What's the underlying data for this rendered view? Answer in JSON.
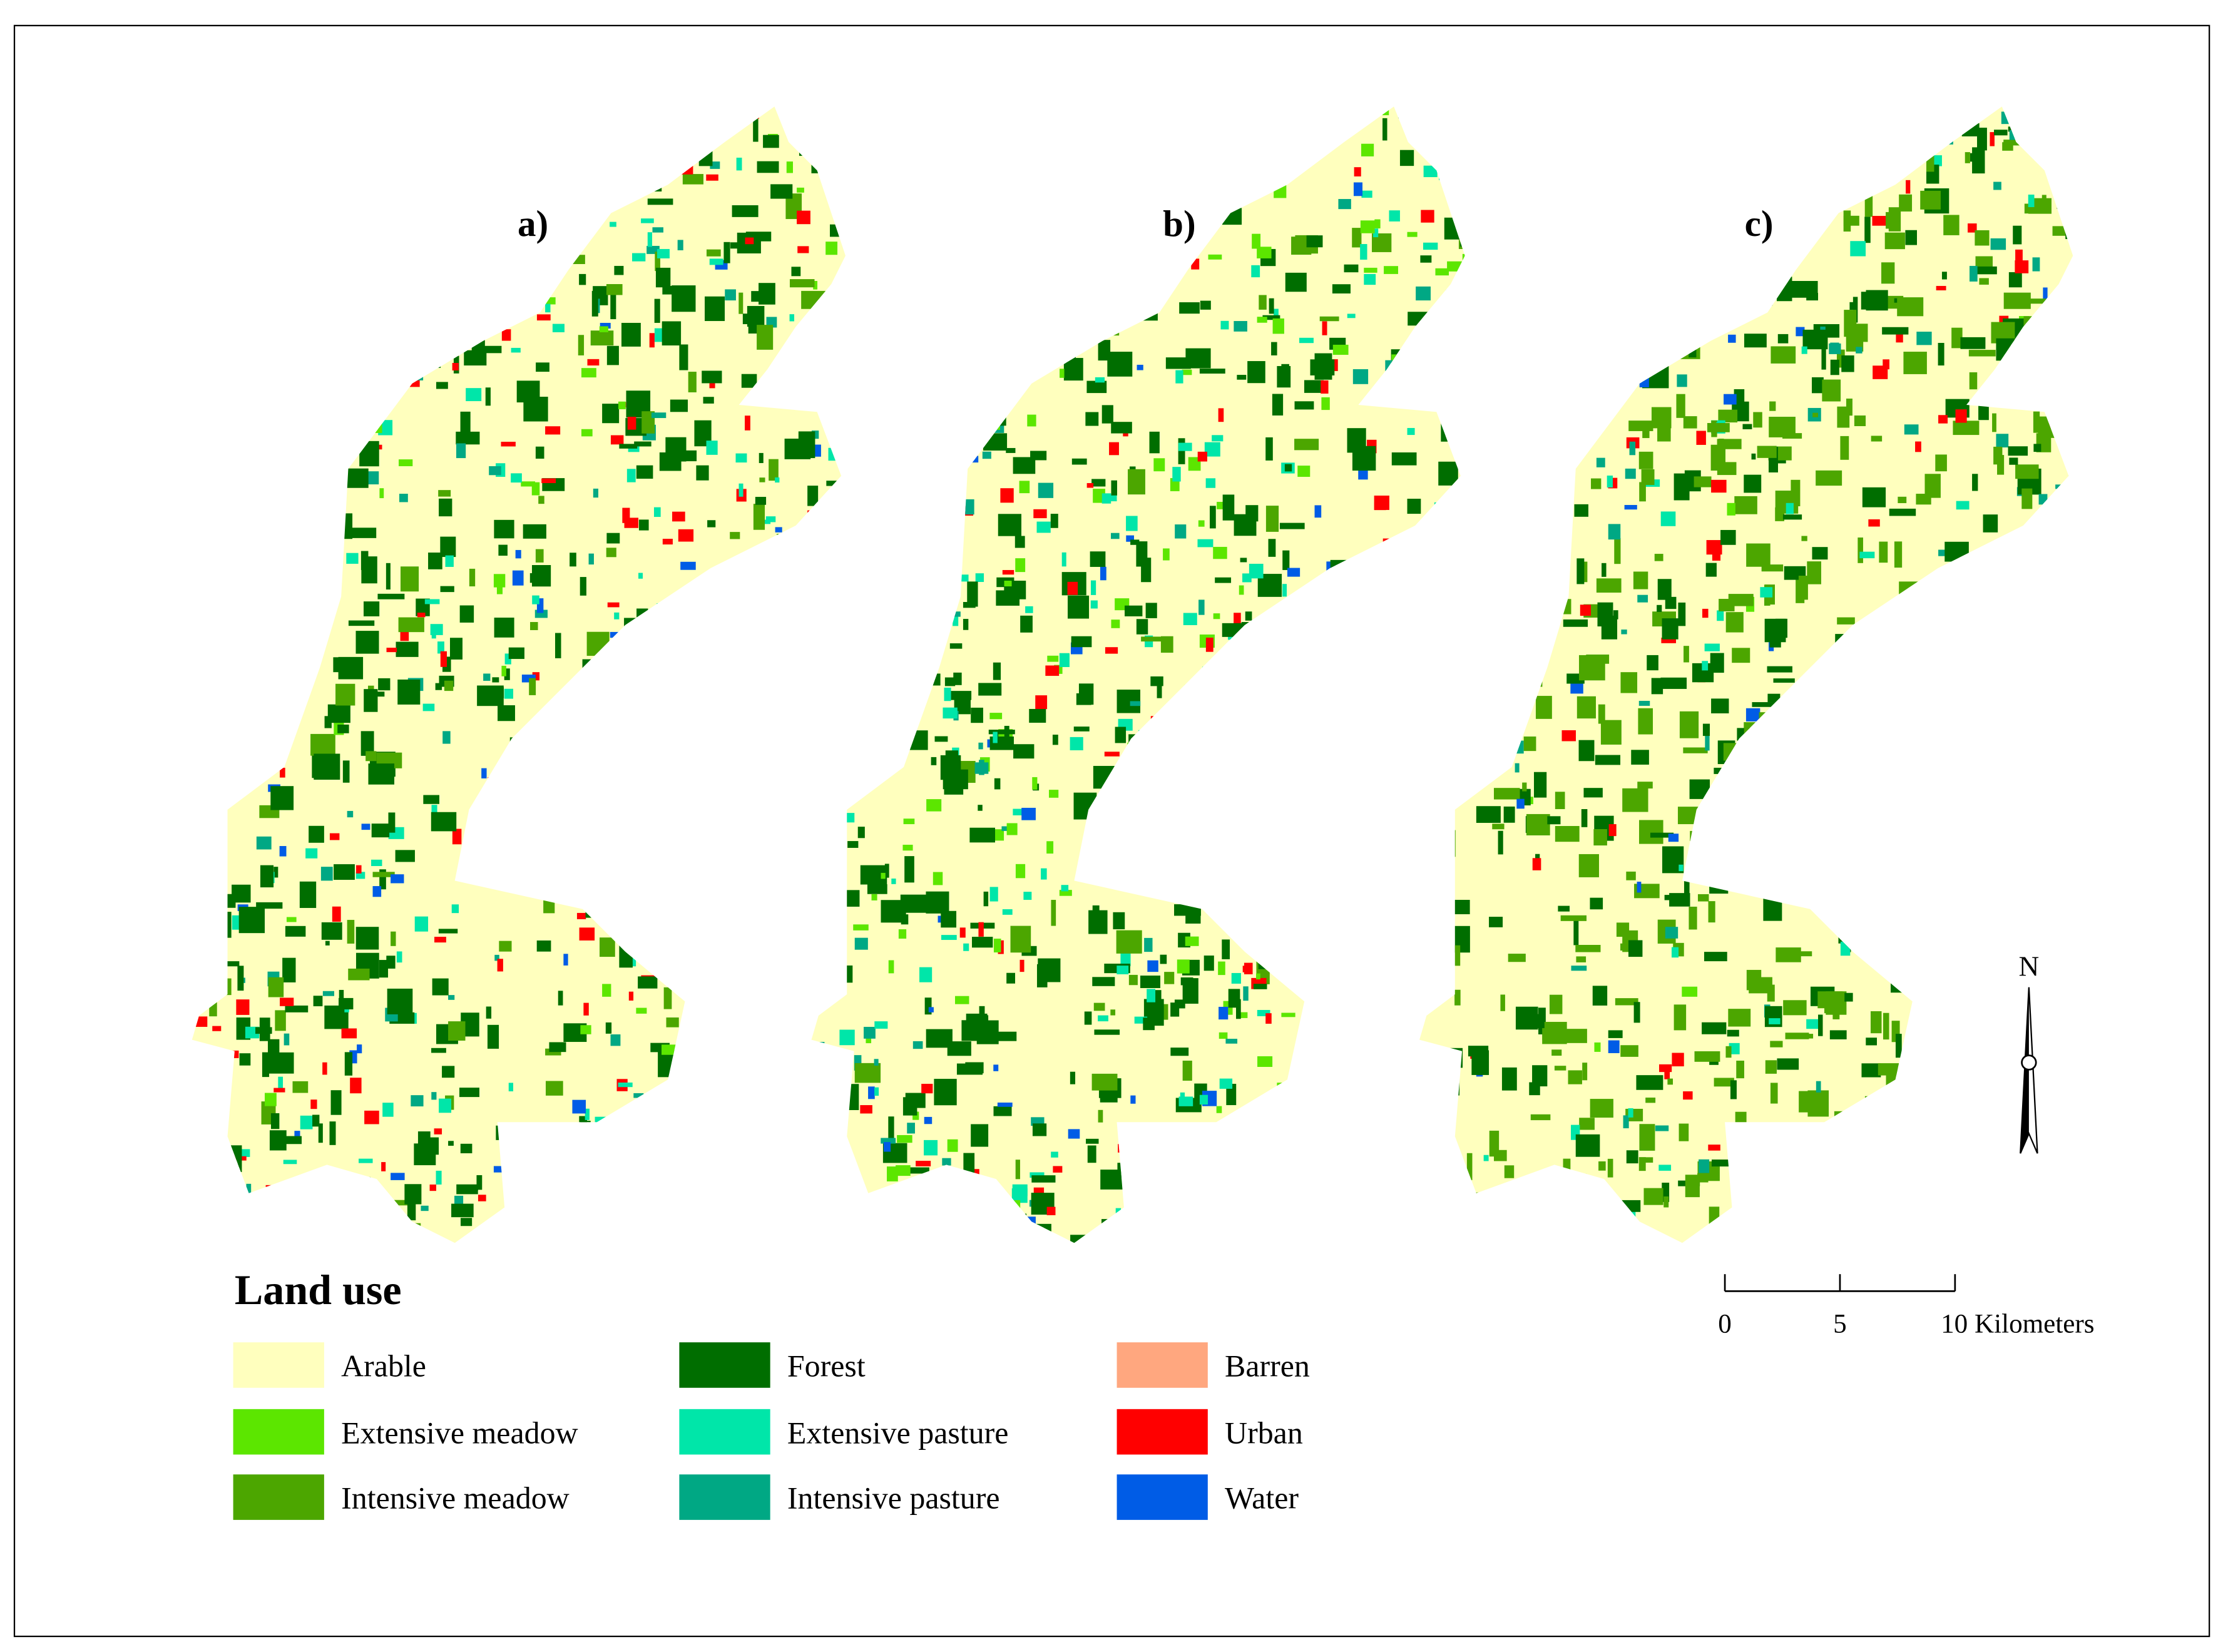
{
  "panels": [
    {
      "label": "a)"
    },
    {
      "label": "b)"
    },
    {
      "label": "c)"
    }
  ],
  "legend": {
    "title": "Land use",
    "items": [
      {
        "name": "Arable",
        "color": "#ffffbe"
      },
      {
        "name": "Extensive meadow",
        "color": "#5ce600"
      },
      {
        "name": "Intensive meadow",
        "color": "#4ca600"
      },
      {
        "name": "Forest",
        "color": "#006e00"
      },
      {
        "name": "Extensive pasture",
        "color": "#00e6a9"
      },
      {
        "name": "Intensive pasture",
        "color": "#00a884"
      },
      {
        "name": "Barren",
        "color": "#ffa77f"
      },
      {
        "name": "Urban",
        "color": "#ff0000"
      },
      {
        "name": "Water",
        "color": "#005ce6"
      }
    ]
  },
  "scale_bar": {
    "labels": [
      "0",
      "5",
      "10 Kilometers"
    ]
  },
  "north_arrow": {
    "label": "N"
  }
}
